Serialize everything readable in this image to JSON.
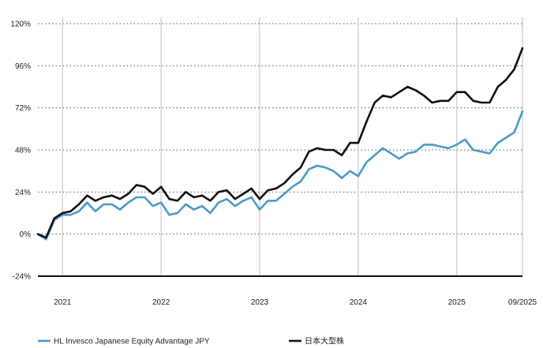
{
  "chart_data": {
    "type": "line",
    "title": "",
    "xlabel": "",
    "ylabel": "",
    "ylim": [
      -24,
      120
    ],
    "y_ticks": [
      {
        "value": 120,
        "label": "120%"
      },
      {
        "value": 96,
        "label": "96%"
      },
      {
        "value": 72,
        "label": "72%"
      },
      {
        "value": 48,
        "label": "48%"
      },
      {
        "value": 24,
        "label": "24%"
      },
      {
        "value": 0,
        "label": "0%"
      },
      {
        "value": -24,
        "label": "-24%"
      }
    ],
    "xlim": [
      "2020-10",
      "2025-09"
    ],
    "x_ticks": [
      {
        "date": "2021-01",
        "label": "2021"
      },
      {
        "date": "2022-01",
        "label": "2022"
      },
      {
        "date": "2023-01",
        "label": "2023"
      },
      {
        "date": "2024-01",
        "label": "2024"
      },
      {
        "date": "2025-01",
        "label": "2025"
      },
      {
        "date": "2025-09",
        "label": "09/2025"
      }
    ],
    "grid": true,
    "legend_position": "bottom-left",
    "x": [
      "2020-10",
      "2020-11",
      "2020-12",
      "2021-01",
      "2021-02",
      "2021-03",
      "2021-04",
      "2021-05",
      "2021-06",
      "2021-07",
      "2021-08",
      "2021-09",
      "2021-10",
      "2021-11",
      "2021-12",
      "2022-01",
      "2022-02",
      "2022-03",
      "2022-04",
      "2022-05",
      "2022-06",
      "2022-07",
      "2022-08",
      "2022-09",
      "2022-10",
      "2022-11",
      "2022-12",
      "2023-01",
      "2023-02",
      "2023-03",
      "2023-04",
      "2023-05",
      "2023-06",
      "2023-07",
      "2023-08",
      "2023-09",
      "2023-10",
      "2023-11",
      "2023-12",
      "2024-01",
      "2024-02",
      "2024-03",
      "2024-04",
      "2024-05",
      "2024-06",
      "2024-07",
      "2024-08",
      "2024-09",
      "2024-10",
      "2024-11",
      "2024-12",
      "2025-01",
      "2025-02",
      "2025-03",
      "2025-04",
      "2025-05",
      "2025-06",
      "2025-07",
      "2025-08",
      "2025-09"
    ],
    "series": [
      {
        "name": "HL Invesco Japanese Equity Advantage JPY",
        "color": "#4a9cc6",
        "values": [
          0,
          -3,
          8,
          11,
          11,
          13,
          18,
          13,
          17,
          17,
          14,
          18,
          21,
          21,
          16,
          18,
          11,
          12,
          17,
          14,
          16,
          12,
          18,
          20,
          16,
          19,
          21,
          14,
          19,
          19,
          23,
          27,
          30,
          37,
          39,
          38,
          36,
          32,
          36,
          33,
          41,
          45,
          49,
          46,
          43,
          46,
          47,
          51,
          51,
          50,
          49,
          51,
          54,
          48,
          47,
          46,
          52,
          55,
          58,
          70
        ]
      },
      {
        "name": "日本大型株",
        "color": "#111111",
        "values": [
          0,
          -2,
          9,
          12,
          13,
          17,
          22,
          19,
          21,
          22,
          20,
          23,
          28,
          27,
          23,
          27,
          20,
          19,
          24,
          21,
          22,
          19,
          24,
          25,
          20,
          23,
          26,
          20,
          25,
          26,
          29,
          34,
          38,
          47,
          49,
          48,
          48,
          45,
          52,
          52,
          64,
          75,
          79,
          78,
          81,
          84,
          82,
          79,
          75,
          76,
          76,
          81,
          81,
          76,
          75,
          75,
          84,
          88,
          94,
          106
        ]
      }
    ]
  }
}
